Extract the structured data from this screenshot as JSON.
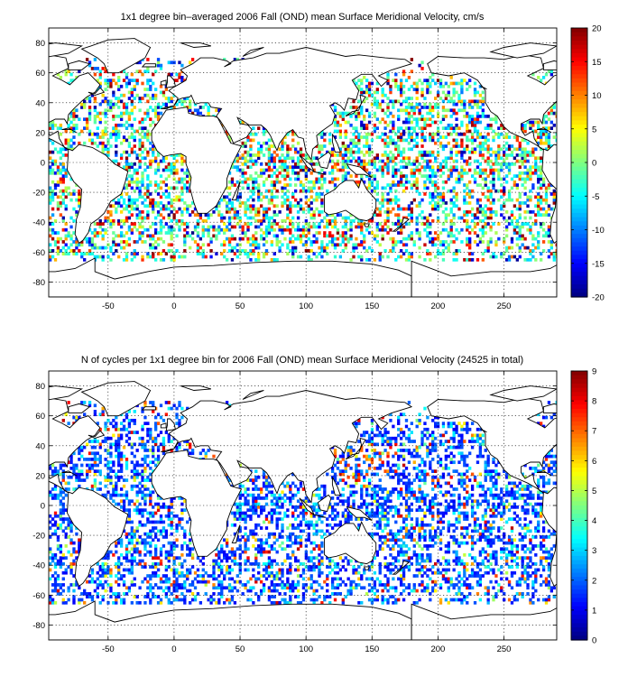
{
  "chart_data": [
    {
      "type": "heatmap",
      "title": "1x1 degree bin–averaged 2006 Fall (OND) mean Surface Meridional Velocity, cm/s",
      "xlim": [
        -95,
        290
      ],
      "ylim": [
        -90,
        90
      ],
      "xticks": [
        -50,
        0,
        50,
        100,
        150,
        200,
        250
      ],
      "yticks": [
        -80,
        -60,
        -40,
        -20,
        0,
        20,
        40,
        60,
        80
      ],
      "grid": true,
      "colorbar": {
        "min": -20,
        "max": 20,
        "ticks": [
          20,
          15,
          10,
          5,
          0,
          -5,
          -10,
          -15,
          -20
        ],
        "colormap": "jet"
      },
      "values_note": "",
      "seed": 17
    },
    {
      "type": "heatmap",
      "title": "N of cycles per 1x1 degree bin for 2006 Fall (OND) mean Surface Meridional Velocity (24525 in total)",
      "xlim": [
        -95,
        290
      ],
      "ylim": [
        -90,
        90
      ],
      "xticks": [
        -50,
        0,
        50,
        100,
        150,
        200,
        250
      ],
      "yticks": [
        -80,
        -60,
        -40,
        -20,
        0,
        20,
        40,
        60,
        80
      ],
      "grid": true,
      "colorbar": {
        "min": 0,
        "max": 9,
        "ticks": [
          9,
          8,
          7,
          6,
          5,
          4,
          3,
          2,
          1,
          0
        ],
        "colormap": "jet"
      },
      "seed": 41
    }
  ]
}
